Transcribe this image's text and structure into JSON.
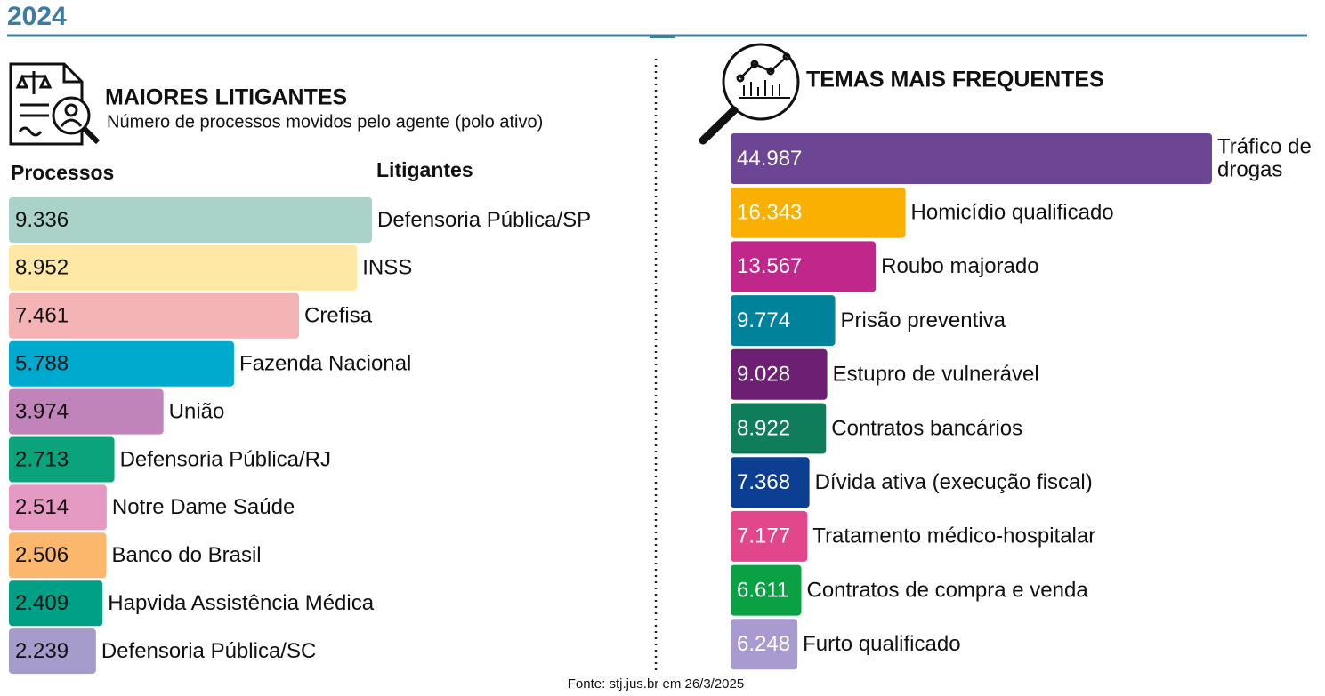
{
  "title": "2024",
  "source": "Fonte: stj.jus.br em 26/3/2025",
  "chart_data": [
    {
      "type": "bar",
      "orientation": "horizontal",
      "title": "MAIORES LITIGANTES",
      "subtitle": "Número de processos movidos pelo agente (polo ativo)",
      "value_header": "Processos",
      "category_header": "Litigantes",
      "categories": [
        "Defensoria Pública/SP",
        "INSS",
        "Crefisa",
        "Fazenda Nacional",
        "União",
        "Defensoria Pública/RJ",
        "Notre Dame Saúde",
        "Banco do Brasil",
        "Hapvida Assistência Médica",
        "Defensoria Pública/SC"
      ],
      "values": [
        9336,
        8952,
        7461,
        5788,
        3974,
        2713,
        2514,
        2506,
        2409,
        2239
      ],
      "value_labels": [
        "9.336",
        "8.952",
        "7.461",
        "5.788",
        "3.974",
        "2.713",
        "2.514",
        "2.506",
        "2.409",
        "2.239"
      ],
      "colors": [
        "#a9d3c9",
        "#fde8a6",
        "#f4b4b6",
        "#00aacf",
        "#c184ba",
        "#0aa37c",
        "#e59ac4",
        "#fbb76b",
        "#00a086",
        "#a59ccb"
      ],
      "value_label_color": "#111111"
    },
    {
      "type": "bar",
      "orientation": "horizontal",
      "title": "TEMAS MAIS FREQUENTES",
      "categories": [
        "Tráfico de drogas",
        "Homicídio qualificado",
        "Roubo majorado",
        "Prisão preventiva",
        "Estupro de vulnerável",
        "Contratos bancários",
        "Dívida ativa (execução fiscal)",
        "Tratamento médico-hospitalar",
        "Contratos de compra e venda",
        "Furto qualificado"
      ],
      "values": [
        44987,
        16343,
        13567,
        9774,
        9028,
        8922,
        7368,
        7177,
        6611,
        6248
      ],
      "value_labels": [
        "44.987",
        "16.343",
        "13.567",
        "9.774",
        "9.028",
        "8.922",
        "7.368",
        "7.177",
        "6.611",
        "6.248"
      ],
      "colors": [
        "#6c4594",
        "#f9b000",
        "#c1278a",
        "#00829a",
        "#6d1f74",
        "#0f7d5a",
        "#0c3f92",
        "#e2478b",
        "#0aa145",
        "#a99bcf"
      ],
      "value_label_color": "#ffffff"
    }
  ]
}
